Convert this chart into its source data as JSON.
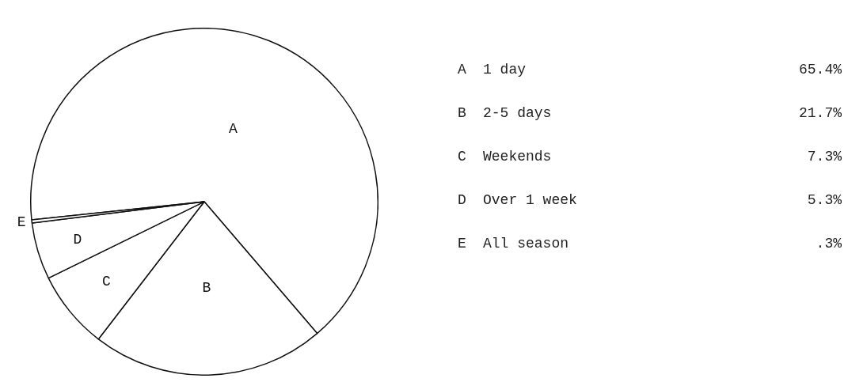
{
  "chart_data": {
    "type": "pie",
    "categories": [
      "A",
      "B",
      "C",
      "D",
      "E"
    ],
    "values": [
      65.4,
      21.7,
      7.3,
      5.3,
      0.3
    ],
    "colors": [
      "#ffffff",
      "#ffffff",
      "#ffffff",
      "#ffffff",
      "#ffffff"
    ],
    "annotations": [
      "1 day",
      "65.4%",
      "2-5 days",
      "21.7%",
      "Weekends",
      "7.3%",
      "Over 1 week",
      "5.3%",
      "All season",
      ".3%"
    ]
  }
}
